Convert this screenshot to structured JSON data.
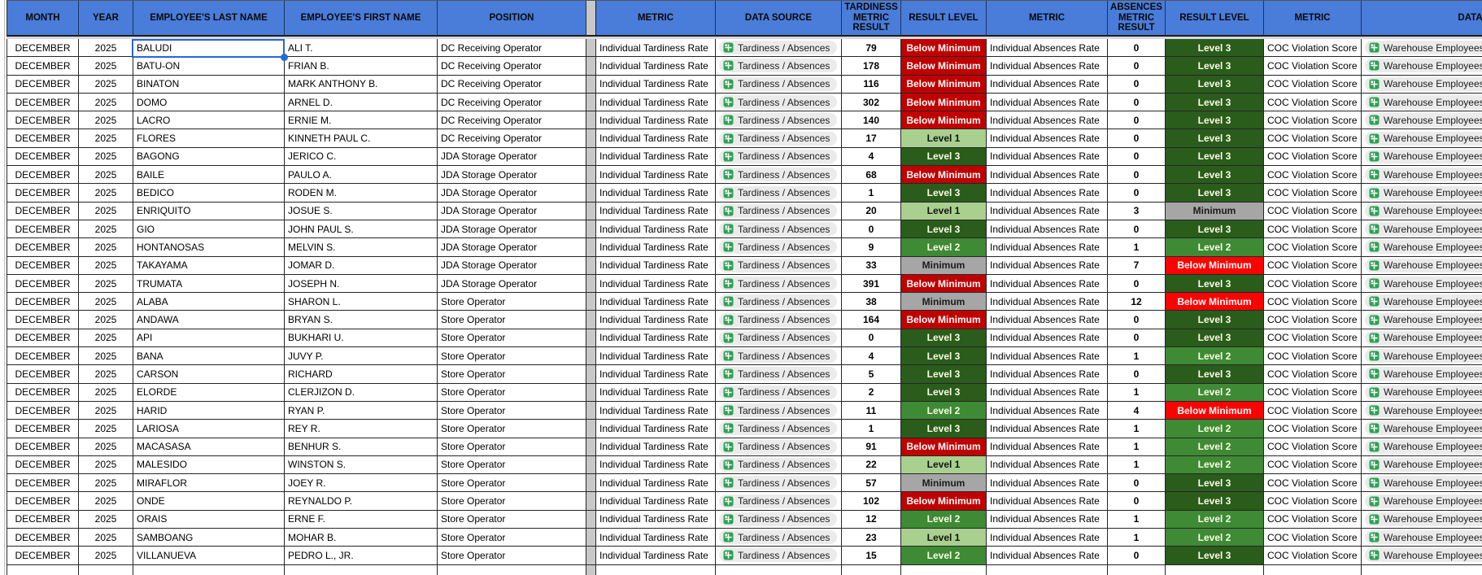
{
  "colors": {
    "header_bg": "#4A7CD9",
    "header_text": "#0A0A0A",
    "separator_fill": "#C8C8C8",
    "pill_bg": "#EBEBEB",
    "pill_icon_green": "#2EA254",
    "selection_blue": "#2368D9",
    "grid_line": "#262626",
    "header_under_band": "#D9D9D9"
  },
  "table": {
    "columns": [
      {
        "id": "month",
        "label": "MONTH"
      },
      {
        "id": "year",
        "label": "YEAR"
      },
      {
        "id": "last-name",
        "label": "EMPLOYEE'S LAST NAME"
      },
      {
        "id": "first-name",
        "label": "EMPLOYEE'S FIRST NAME"
      },
      {
        "id": "position",
        "label": "POSITION"
      },
      {
        "id": "separator",
        "label": ""
      },
      {
        "id": "metric-tardiness",
        "label": "METRIC"
      },
      {
        "id": "data-source-tardiness",
        "label": "DATA SOURCE"
      },
      {
        "id": "tardiness-metric-result",
        "label": "TARDINESS METRIC RESULT"
      },
      {
        "id": "result-level-tardiness",
        "label": "RESULT LEVEL"
      },
      {
        "id": "metric-absences",
        "label": "METRIC"
      },
      {
        "id": "absences-metric-result",
        "label": "ABSENCES METRIC RESULT"
      },
      {
        "id": "result-level-absences",
        "label": "RESULT LEVEL"
      },
      {
        "id": "metric-coc",
        "label": "METRIC"
      },
      {
        "id": "data-source-coc",
        "label": "DATA SOURCE"
      }
    ],
    "common": {
      "month": "DECEMBER",
      "year": "2025",
      "tardiness_metric": "Individual Tardiness Rate",
      "tardiness_source": "Tardiness / Absences",
      "absences_metric": "Individual Absences Rate",
      "coc_metric": "COC Violation Score",
      "coc_source": "Warehouse Employees"
    },
    "level_styles": {
      "below_minimum": {
        "bg": "#C00000",
        "fg": "#FFFFFF"
      },
      "below_minimum_bright": {
        "bg": "#FF0000",
        "fg": "#FFFFFF"
      },
      "minimum": {
        "bg": "#A6A6A6",
        "fg": "#1C1C1C"
      },
      "level_1": {
        "bg": "#A9D08E",
        "fg": "#141414"
      },
      "level_2": {
        "bg": "#3E8A35",
        "fg": "#FCFCE4"
      },
      "level_3": {
        "bg": "#2A5C1C",
        "fg": "#FCFCE4"
      }
    },
    "rows": [
      {
        "last_name": "BALUDI",
        "first_name": "ALI T.",
        "position": "DC Receiving Operator",
        "tardiness_result": "79",
        "tardiness_level": "Below Minimum",
        "absences_result": "0",
        "absences_level": "Level 3"
      },
      {
        "last_name": "BATU-ON",
        "first_name": "FRIAN B.",
        "position": "DC Receiving Operator",
        "tardiness_result": "178",
        "tardiness_level": "Below Minimum",
        "absences_result": "0",
        "absences_level": "Level 3"
      },
      {
        "last_name": "BINATON",
        "first_name": "MARK ANTHONY B.",
        "position": "DC Receiving Operator",
        "tardiness_result": "116",
        "tardiness_level": "Below Minimum",
        "absences_result": "0",
        "absences_level": "Level 3"
      },
      {
        "last_name": "DOMO",
        "first_name": "ARNEL D.",
        "position": "DC Receiving Operator",
        "tardiness_result": "302",
        "tardiness_level": "Below Minimum",
        "absences_result": "0",
        "absences_level": "Level 3"
      },
      {
        "last_name": "LACRO",
        "first_name": "ERNIE M.",
        "position": "DC Receiving Operator",
        "tardiness_result": "140",
        "tardiness_level": "Below Minimum",
        "absences_result": "0",
        "absences_level": "Level 3"
      },
      {
        "last_name": "FLORES",
        "first_name": "KINNETH PAUL C.",
        "position": "DC Receiving Operator",
        "tardiness_result": "17",
        "tardiness_level": "Level 1",
        "absences_result": "0",
        "absences_level": "Level 3"
      },
      {
        "last_name": "BAGONG",
        "first_name": "JERICO C.",
        "position": "JDA Storage Operator",
        "tardiness_result": "4",
        "tardiness_level": "Level 3",
        "absences_result": "0",
        "absences_level": "Level 3"
      },
      {
        "last_name": "BAILE",
        "first_name": "PAULO A.",
        "position": "JDA Storage Operator",
        "tardiness_result": "68",
        "tardiness_level": "Below Minimum",
        "absences_result": "0",
        "absences_level": "Level 3"
      },
      {
        "last_name": "BEDICO",
        "first_name": "RODEN M.",
        "position": "JDA Storage Operator",
        "tardiness_result": "1",
        "tardiness_level": "Level 3",
        "absences_result": "0",
        "absences_level": "Level 3"
      },
      {
        "last_name": "ENRIQUITO",
        "first_name": "JOSUE S.",
        "position": "JDA Storage Operator",
        "tardiness_result": "20",
        "tardiness_level": "Level 1",
        "absences_result": "3",
        "absences_level": "Minimum"
      },
      {
        "last_name": "GIO",
        "first_name": "JOHN PAUL S.",
        "position": "JDA Storage Operator",
        "tardiness_result": "0",
        "tardiness_level": "Level 3",
        "absences_result": "0",
        "absences_level": "Level 3"
      },
      {
        "last_name": "HONTANOSAS",
        "first_name": "MELVIN S.",
        "position": "JDA Storage Operator",
        "tardiness_result": "9",
        "tardiness_level": "Level 2",
        "absences_result": "1",
        "absences_level": "Level 2"
      },
      {
        "last_name": "TAKAYAMA",
        "first_name": "JOMAR D.",
        "position": "JDA Storage Operator",
        "tardiness_result": "33",
        "tardiness_level": "Minimum",
        "absences_result": "7",
        "absences_level": "Below Minimum"
      },
      {
        "last_name": "TRUMATA",
        "first_name": "JOSEPH N.",
        "position": "JDA Storage Operator",
        "tardiness_result": "391",
        "tardiness_level": "Below Minimum",
        "absences_result": "0",
        "absences_level": "Level 3"
      },
      {
        "last_name": "ALABA",
        "first_name": "SHARON L.",
        "position": "Store Operator",
        "tardiness_result": "38",
        "tardiness_level": "Minimum",
        "absences_result": "12",
        "absences_level": "Below Minimum"
      },
      {
        "last_name": "ANDAWA",
        "first_name": "BRYAN S.",
        "position": "Store Operator",
        "tardiness_result": "164",
        "tardiness_level": "Below Minimum",
        "absences_result": "0",
        "absences_level": "Level 3"
      },
      {
        "last_name": "API",
        "first_name": "BUKHARI U.",
        "position": "Store Operator",
        "tardiness_result": "0",
        "tardiness_level": "Level 3",
        "absences_result": "0",
        "absences_level": "Level 3"
      },
      {
        "last_name": "BANA",
        "first_name": "JUVY P.",
        "position": "Store Operator",
        "tardiness_result": "4",
        "tardiness_level": "Level 3",
        "absences_result": "1",
        "absences_level": "Level 2"
      },
      {
        "last_name": "CARSON",
        "first_name": "RICHARD",
        "position": "Store Operator",
        "tardiness_result": "5",
        "tardiness_level": "Level 3",
        "absences_result": "0",
        "absences_level": "Level 3"
      },
      {
        "last_name": "ELORDE",
        "first_name": "CLERJIZON D.",
        "position": "Store Operator",
        "tardiness_result": "2",
        "tardiness_level": "Level 3",
        "absences_result": "1",
        "absences_level": "Level 2"
      },
      {
        "last_name": "HARID",
        "first_name": "RYAN P.",
        "position": "Store Operator",
        "tardiness_result": "11",
        "tardiness_level": "Level 2",
        "absences_result": "4",
        "absences_level": "Below Minimum"
      },
      {
        "last_name": "LARIOSA",
        "first_name": "REY R.",
        "position": "Store Operator",
        "tardiness_result": "1",
        "tardiness_level": "Level 3",
        "absences_result": "1",
        "absences_level": "Level 2"
      },
      {
        "last_name": "MACASASA",
        "first_name": "BENHUR S.",
        "position": "Store Operator",
        "tardiness_result": "91",
        "tardiness_level": "Below Minimum",
        "absences_result": "1",
        "absences_level": "Level 2"
      },
      {
        "last_name": "MALESIDO",
        "first_name": "WINSTON S.",
        "position": "Store Operator",
        "tardiness_result": "22",
        "tardiness_level": "Level 1",
        "absences_result": "1",
        "absences_level": "Level 2"
      },
      {
        "last_name": "MIRAFLOR",
        "first_name": "JOEY R.",
        "position": "Store Operator",
        "tardiness_result": "57",
        "tardiness_level": "Minimum",
        "absences_result": "0",
        "absences_level": "Level 3"
      },
      {
        "last_name": "ONDE",
        "first_name": "REYNALDO P.",
        "position": "Store Operator",
        "tardiness_result": "102",
        "tardiness_level": "Below Minimum",
        "absences_result": "0",
        "absences_level": "Level 3"
      },
      {
        "last_name": "ORAIS",
        "first_name": "ERNE F.",
        "position": "Store Operator",
        "tardiness_result": "12",
        "tardiness_level": "Level 2",
        "absences_result": "1",
        "absences_level": "Level 2"
      },
      {
        "last_name": "SAMBOANG",
        "first_name": "MOHAR B.",
        "position": "Store Operator",
        "tardiness_result": "23",
        "tardiness_level": "Level 1",
        "absences_result": "1",
        "absences_level": "Level 2"
      },
      {
        "last_name": "VILLANUEVA",
        "first_name": "PEDRO L., JR.",
        "position": "Store Operator",
        "tardiness_result": "15",
        "tardiness_level": "Level 2",
        "absences_result": "0",
        "absences_level": "Level 3"
      }
    ],
    "selection": {
      "row_index": 0,
      "column": "last-name"
    }
  }
}
